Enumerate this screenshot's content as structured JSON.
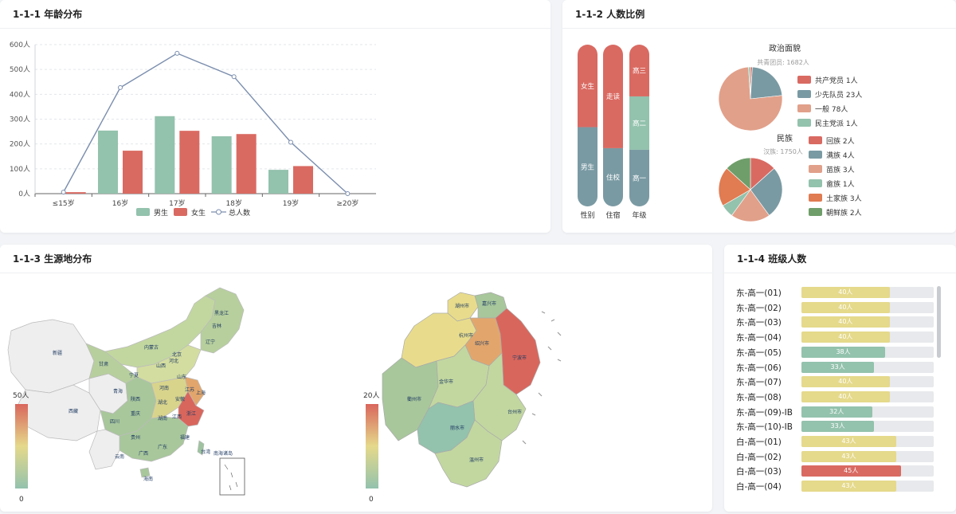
{
  "cards": {
    "age": {
      "title": "1-1-1 年龄分布"
    },
    "ratio": {
      "title": "1-1-2 人数比例"
    },
    "origin": {
      "title": "1-1-3 生源地分布"
    },
    "classes": {
      "title": "1-1-4 班级人数"
    }
  },
  "chart_data": [
    {
      "type": "bar",
      "categories": [
        "≤15岁",
        "16岁",
        "17岁",
        "18岁",
        "19岁",
        "≥20岁"
      ],
      "series": [
        {
          "name": "男生",
          "type": "bar",
          "values": [
            0,
            254,
            312,
            231,
            96,
            0
          ],
          "color": "#93c2ad"
        },
        {
          "name": "女生",
          "type": "bar",
          "values": [
            6,
            173,
            253,
            240,
            111,
            0
          ],
          "color": "#d96a62"
        },
        {
          "name": "总人数",
          "type": "line",
          "values": [
            6,
            427,
            565,
            471,
            207,
            0
          ],
          "color": "#7b8eae"
        }
      ],
      "yticks": [
        "0人",
        "100人",
        "200人",
        "300人",
        "400人",
        "500人",
        "600人"
      ],
      "ylim": [
        0,
        600
      ],
      "grid": true,
      "legend_position": "bottom"
    },
    {
      "type": "bar",
      "stacked": true,
      "categories": [
        "性别",
        "住宿",
        "年级"
      ],
      "segments": [
        [
          {
            "label": "男生",
            "share": 0.49,
            "color": "#7a9aa3"
          },
          {
            "label": "女生",
            "share": 0.51,
            "color": "#d96a62"
          }
        ],
        [
          {
            "label": "住校",
            "share": 0.36,
            "color": "#7a9aa3"
          },
          {
            "label": "走读",
            "share": 0.64,
            "color": "#d96a62"
          }
        ],
        [
          {
            "label": "高一",
            "share": 0.35,
            "color": "#7a9aa3"
          },
          {
            "label": "高二",
            "share": 0.33,
            "color": "#93c2ad"
          },
          {
            "label": "高三",
            "share": 0.32,
            "color": "#d96a62"
          }
        ]
      ]
    },
    {
      "type": "pie",
      "title": "政治面貌",
      "subtitle": "共青团员: 1682人",
      "slices": [
        {
          "label": "共产党员 1人",
          "value": 1,
          "color": "#d96a62"
        },
        {
          "label": "少先队员 23人",
          "value": 23,
          "color": "#7a9aa3"
        },
        {
          "label": "一般 78人",
          "value": 78,
          "color": "#e1a08a"
        },
        {
          "label": "民主党派 1人",
          "value": 1,
          "color": "#93c2ad"
        }
      ]
    },
    {
      "type": "pie",
      "title": "民族",
      "subtitle": "汉族: 1750人",
      "slices": [
        {
          "label": "回族 2人",
          "value": 2,
          "color": "#d96a62"
        },
        {
          "label": "满族 4人",
          "value": 4,
          "color": "#7a9aa3"
        },
        {
          "label": "苗族 3人",
          "value": 3,
          "color": "#e1a08a"
        },
        {
          "label": "畲族 1人",
          "value": 1,
          "color": "#93c2ad"
        },
        {
          "label": "土家族 3人",
          "value": 3,
          "color": "#e07b52"
        },
        {
          "label": "朝鲜族 2人",
          "value": 2,
          "color": "#6f9e6a"
        }
      ]
    },
    {
      "type": "bar",
      "orientation": "horizontal",
      "categories": [
        "东-高一(01)",
        "东-高一(02)",
        "东-高一(03)",
        "东-高一(04)",
        "东-高一(05)",
        "东-高一(06)",
        "东-高一(07)",
        "东-高一(08)",
        "东-高一(09)-IB",
        "东-高一(10)-IB",
        "白-高一(01)",
        "白-高一(02)",
        "白-高一(03)",
        "白-高一(04)"
      ],
      "values": [
        40,
        40,
        40,
        40,
        38,
        33,
        40,
        40,
        32,
        33,
        43,
        43,
        45,
        43
      ],
      "labels": [
        "40人",
        "40人",
        "40人",
        "40人",
        "38人",
        "33人",
        "40人",
        "40人",
        "32人",
        "33人",
        "43人",
        "43人",
        "45人",
        "43人"
      ],
      "xlim": [
        0,
        60
      ]
    }
  ],
  "maps": {
    "china": {
      "visual_max": "50人",
      "visual_min": "0",
      "labels": [
        "新疆",
        "西藏",
        "青海",
        "甘肃",
        "内蒙古",
        "黑龙江",
        "吉林",
        "辽宁",
        "宁夏",
        "山西",
        "河北",
        "北京",
        "陕西",
        "四川",
        "重庆",
        "湖北",
        "安徽",
        "江苏",
        "上海",
        "河南",
        "山东",
        "湖南",
        "江西",
        "浙江",
        "贵州",
        "云南",
        "广西",
        "广东",
        "福建",
        "台湾",
        "海南",
        "南海诸岛"
      ]
    },
    "zhejiang": {
      "visual_max": "20人",
      "visual_min": "0",
      "labels": [
        "湖州市",
        "嘉兴市",
        "杭州市",
        "绍兴市",
        "宁波市",
        "衢州市",
        "金华市",
        "台州市",
        "丽水市",
        "温州市"
      ]
    }
  },
  "colors": {
    "male": "#93c2ad",
    "female": "#d96a62",
    "total": "#7b8eae",
    "blue_grey": "#7a9aa3",
    "yellow": "#e5d98b",
    "track": "#e7e9ec"
  }
}
